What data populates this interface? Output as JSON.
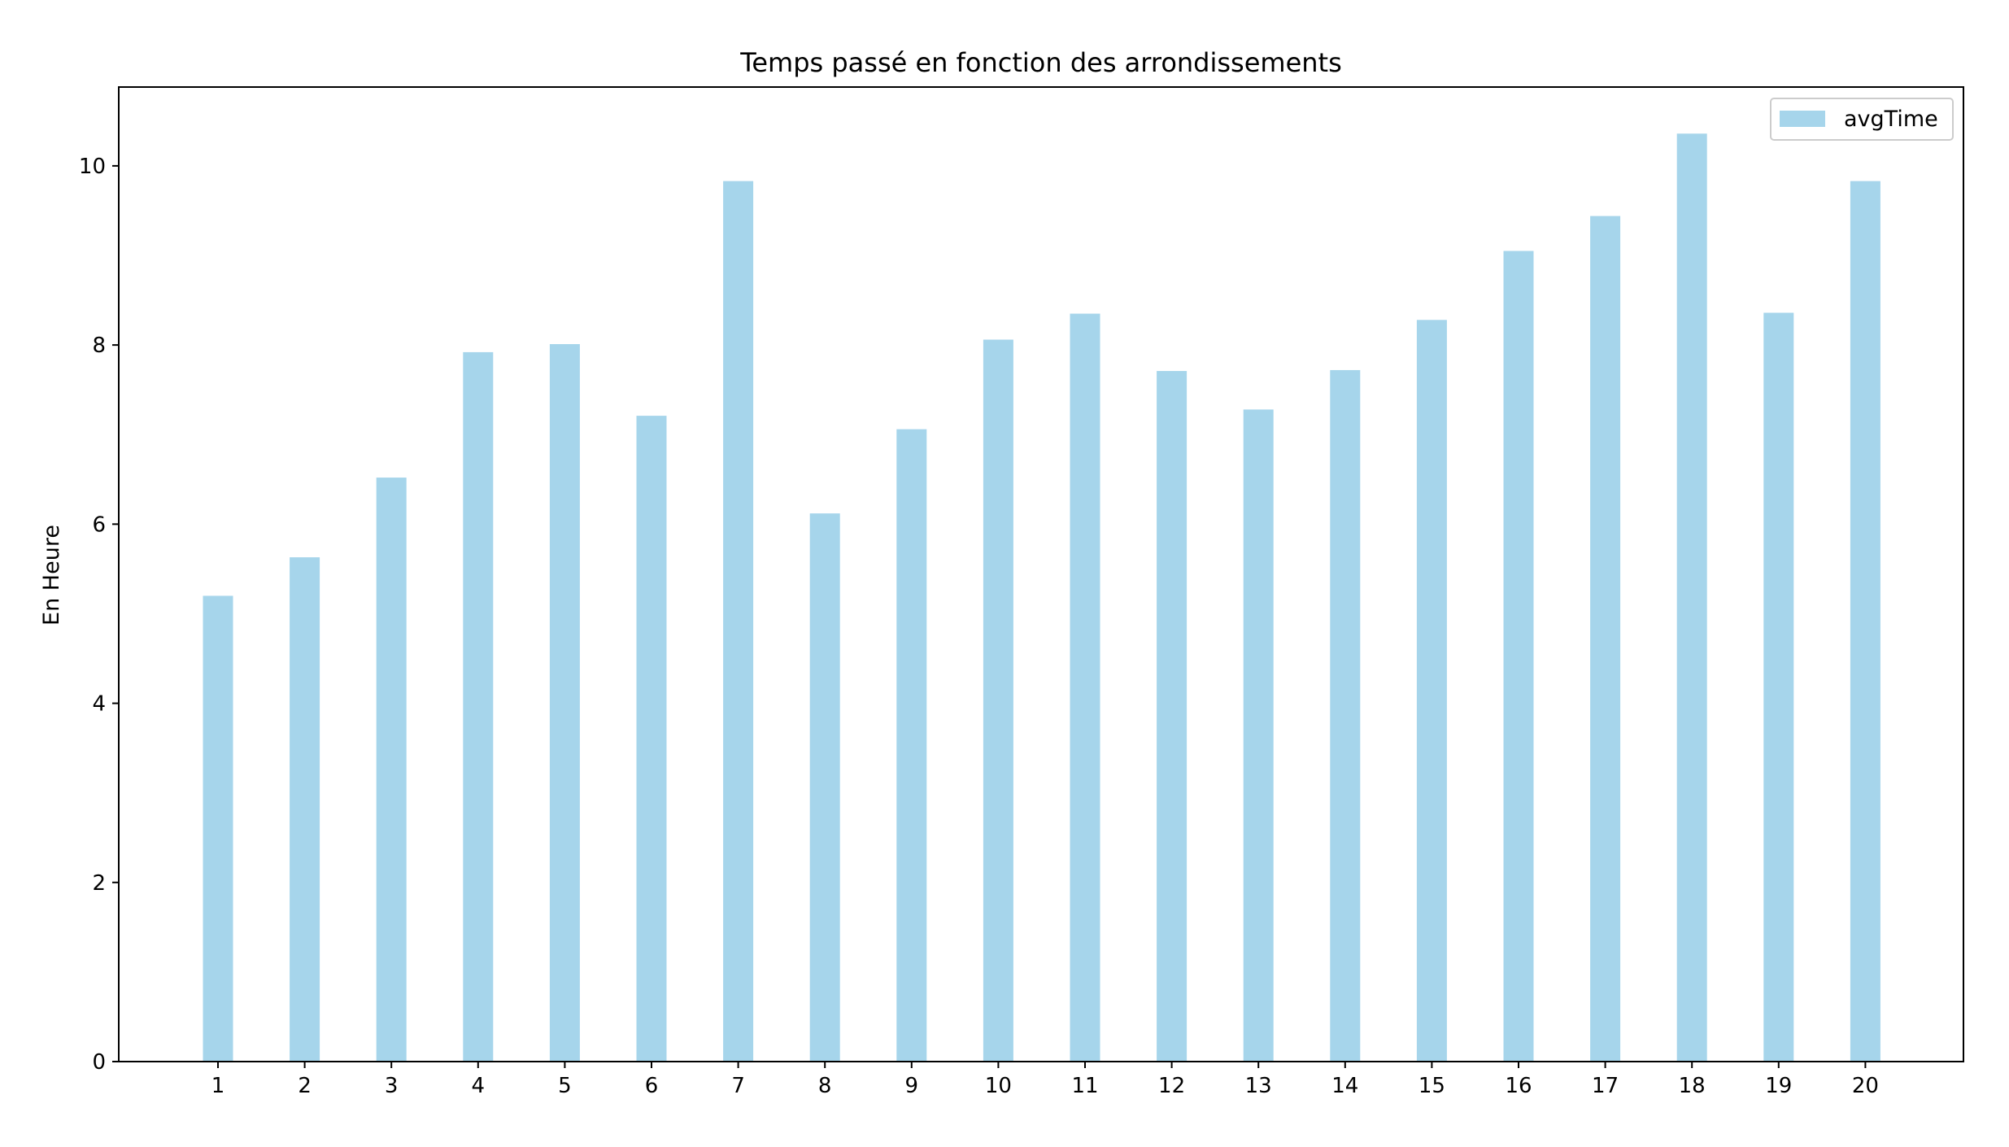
{
  "chart_data": {
    "type": "bar",
    "title": "Temps passé en fonction des arrondissements",
    "xlabel": "",
    "ylabel": "En Heure",
    "categories": [
      "1",
      "2",
      "3",
      "4",
      "5",
      "6",
      "7",
      "8",
      "9",
      "10",
      "11",
      "12",
      "13",
      "14",
      "15",
      "16",
      "17",
      "18",
      "19",
      "20"
    ],
    "series": [
      {
        "name": "avgTime",
        "color": "#a6d5eb",
        "values": [
          5.2,
          5.63,
          6.52,
          7.92,
          8.01,
          7.21,
          9.83,
          6.12,
          7.06,
          8.06,
          8.35,
          7.71,
          7.28,
          7.72,
          8.28,
          9.05,
          9.44,
          10.36,
          8.36,
          9.83
        ]
      }
    ],
    "ylim": [
      0,
      10.88
    ],
    "yticks": [
      0,
      2,
      4,
      6,
      8,
      10
    ],
    "grid": false,
    "legend": {
      "position": "top-right"
    }
  }
}
